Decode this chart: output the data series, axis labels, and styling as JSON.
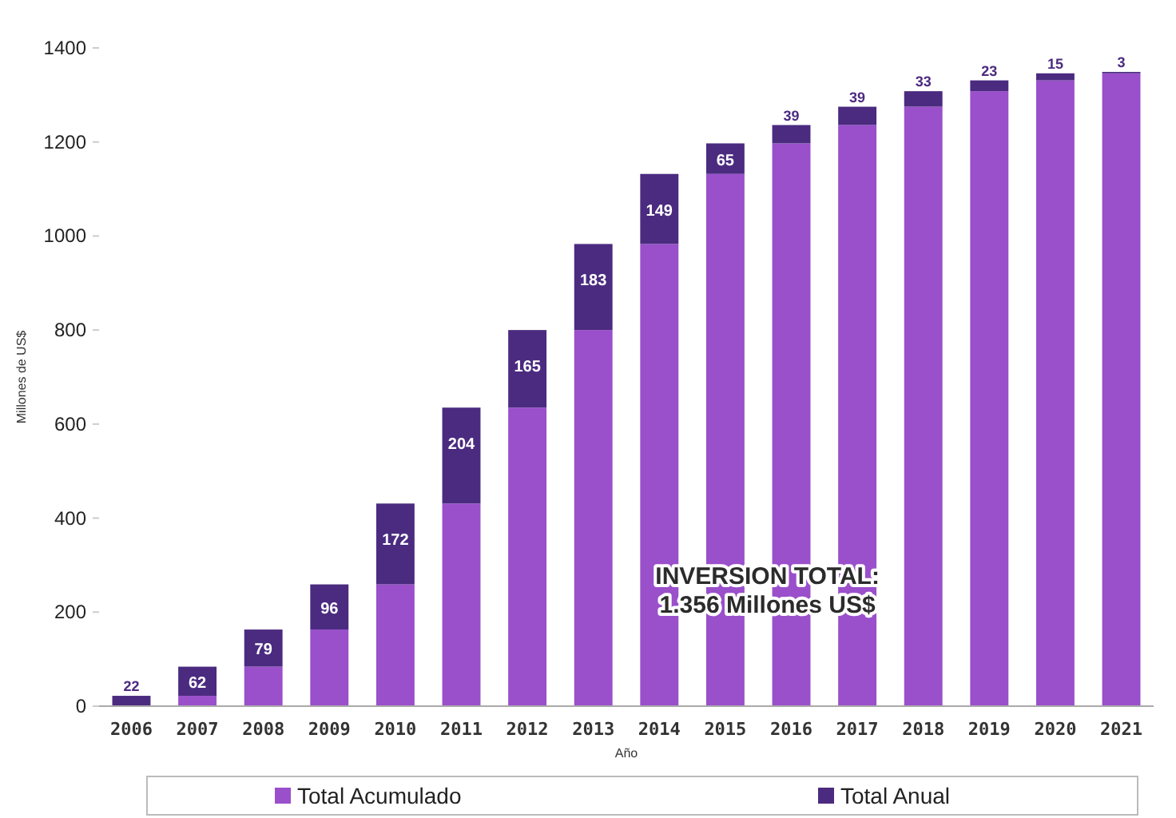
{
  "chart_data": {
    "type": "bar",
    "stacked": true,
    "xlabel": "Año",
    "ylabel": "Millones de US$",
    "categories": [
      "2006",
      "2007",
      "2008",
      "2009",
      "2010",
      "2011",
      "2012",
      "2013",
      "2014",
      "2015",
      "2016",
      "2017",
      "2018",
      "2019",
      "2020",
      "2021"
    ],
    "series": [
      {
        "name": "Total Acumulado",
        "color": "#9a4fcb",
        "values": [
          0,
          22,
          84,
          163,
          259,
          431,
          635,
          800,
          983,
          1132,
          1197,
          1236,
          1275,
          1308,
          1331,
          1346
        ]
      },
      {
        "name": "Total Anual",
        "color": "#4b2b80",
        "values": [
          22,
          62,
          79,
          96,
          172,
          204,
          165,
          183,
          149,
          65,
          39,
          39,
          33,
          23,
          15,
          3
        ],
        "value_labels": [
          "22",
          "62",
          "79",
          "96",
          "172",
          "204",
          "165",
          "183",
          "149",
          "65",
          "39",
          "39",
          "33",
          "23",
          "15",
          "3"
        ]
      }
    ],
    "ylim": [
      0,
      1400
    ],
    "yticks": [
      0,
      200,
      400,
      600,
      800,
      1000,
      1200,
      1400
    ],
    "grid": false,
    "legend": "bottom",
    "annotations": [
      "INVERSION TOTAL:\n1.356 Millones US$"
    ]
  }
}
